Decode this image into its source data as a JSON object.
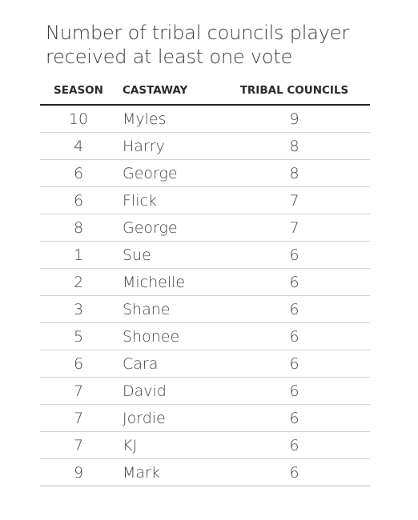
{
  "title": "Number of tribal councils player received at least one vote",
  "columns": {
    "season": "SEASON",
    "castaway": "CASTAWAY",
    "tribal_councils": "TRIBAL COUNCILS"
  },
  "rows": [
    {
      "season": "10",
      "castaway": "Myles",
      "tribal_councils": "9"
    },
    {
      "season": "4",
      "castaway": "Harry",
      "tribal_councils": "8"
    },
    {
      "season": "6",
      "castaway": "George",
      "tribal_councils": "8"
    },
    {
      "season": "6",
      "castaway": "Flick",
      "tribal_councils": "7"
    },
    {
      "season": "8",
      "castaway": "George",
      "tribal_councils": "7"
    },
    {
      "season": "1",
      "castaway": "Sue",
      "tribal_councils": "6"
    },
    {
      "season": "2",
      "castaway": "Michelle",
      "tribal_councils": "6"
    },
    {
      "season": "3",
      "castaway": "Shane",
      "tribal_councils": "6"
    },
    {
      "season": "5",
      "castaway": "Shonee",
      "tribal_councils": "6"
    },
    {
      "season": "6",
      "castaway": "Cara",
      "tribal_councils": "6"
    },
    {
      "season": "7",
      "castaway": "David",
      "tribal_councils": "6"
    },
    {
      "season": "7",
      "castaway": "Jordie",
      "tribal_councils": "6"
    },
    {
      "season": "7",
      "castaway": "KJ",
      "tribal_councils": "6"
    },
    {
      "season": "9",
      "castaway": "Mark",
      "tribal_councils": "6"
    }
  ]
}
